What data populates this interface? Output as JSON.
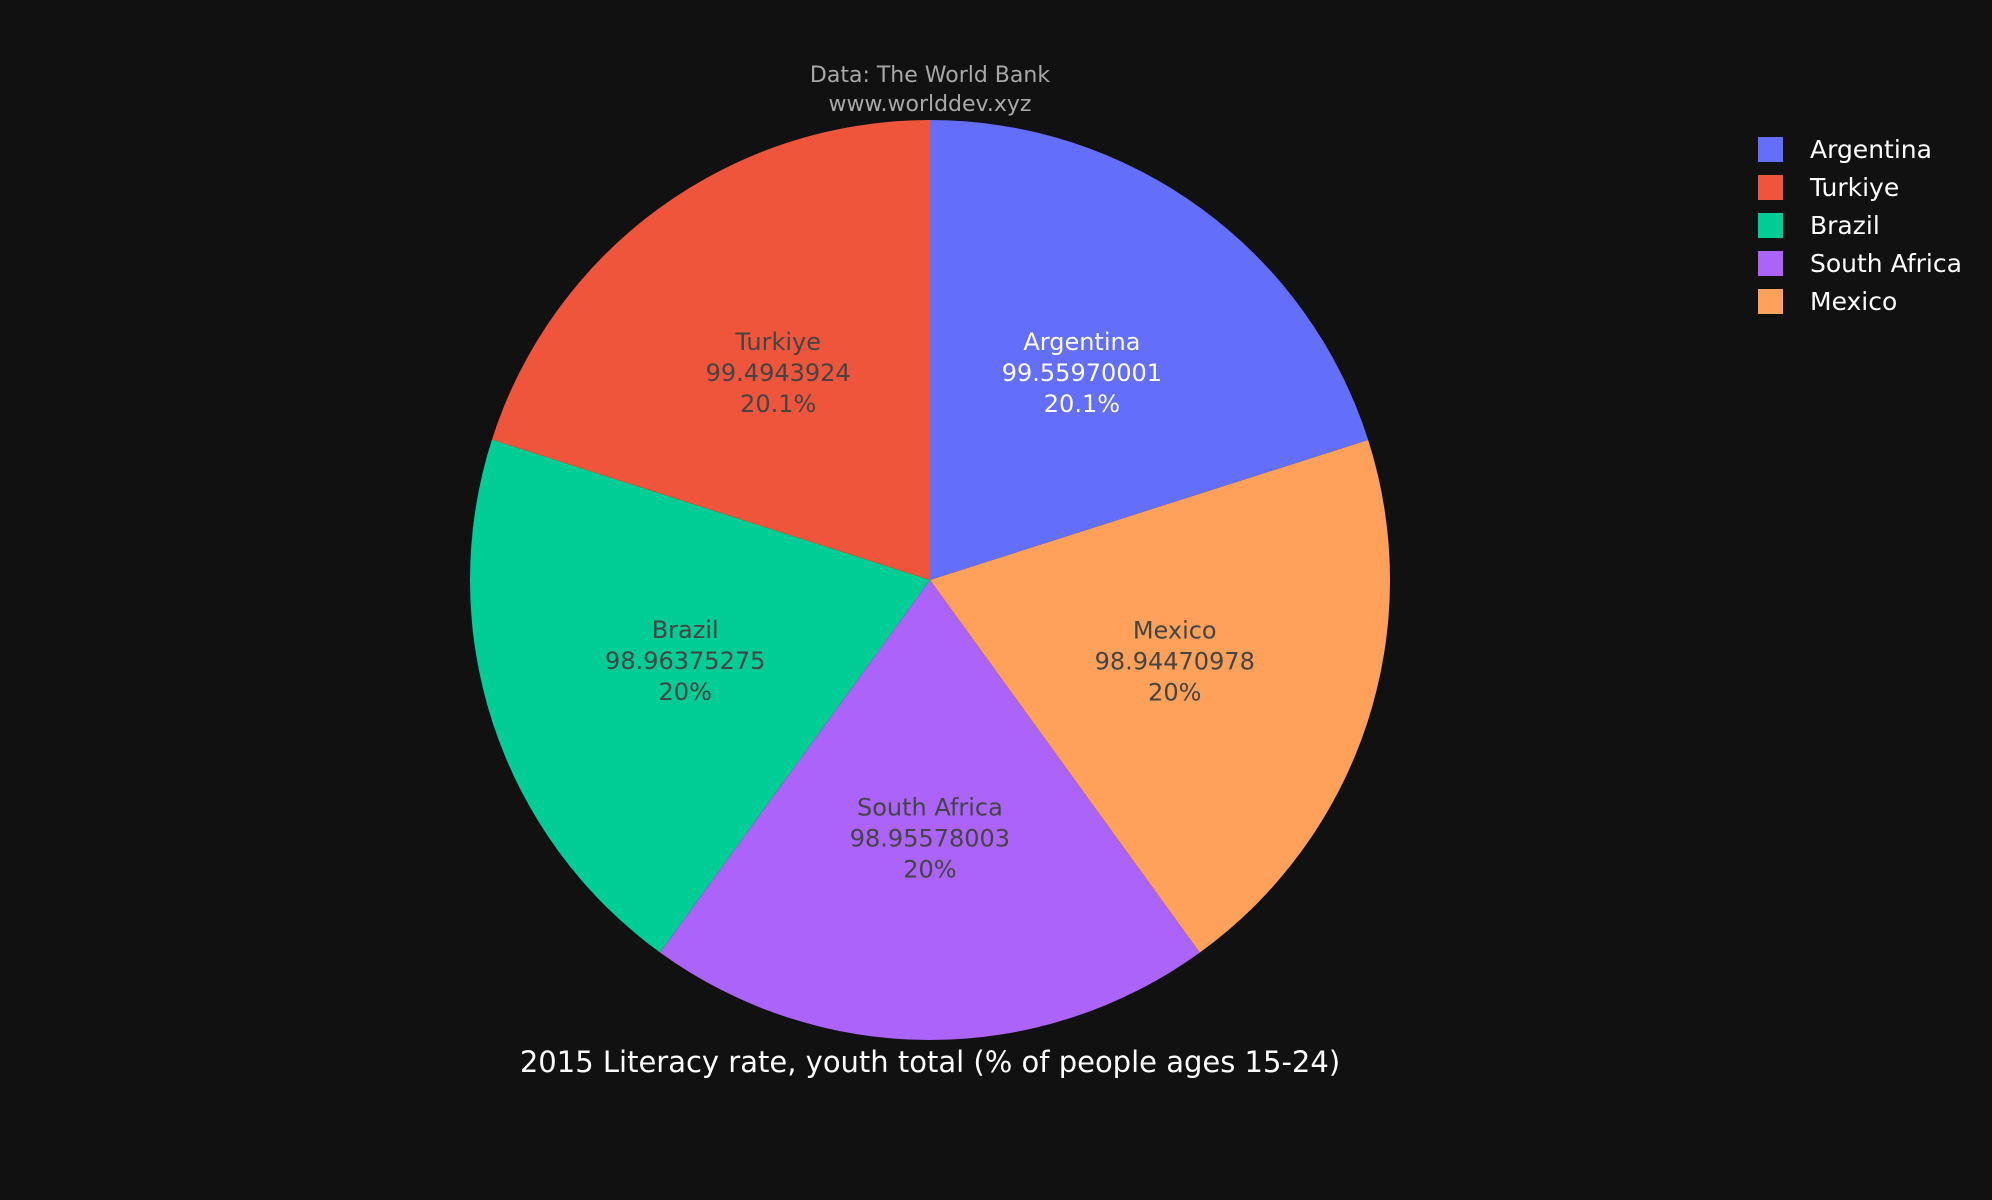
{
  "source": {
    "line1": "Data: The World Bank",
    "line2": "www.worlddev.xyz"
  },
  "chart_data": {
    "type": "pie",
    "title": "2015 Literacy rate, youth total (% of people ages 15-24)",
    "background": "#111111",
    "direction": "clockwise",
    "start_angle": "top",
    "legend_position": "top-right",
    "slices": [
      {
        "label": "Argentina",
        "value": 99.55970001,
        "value_text": "99.55970001",
        "percent_text": "20.1%",
        "color": "#636efa",
        "text_color": "#ffffff"
      },
      {
        "label": "Mexico",
        "value": 98.94470978,
        "value_text": "98.94470978",
        "percent_text": "20%",
        "color": "#ffa15a",
        "text_color": "#444444"
      },
      {
        "label": "South Africa",
        "value": 98.95578003,
        "value_text": "98.95578003",
        "percent_text": "20%",
        "color": "#ab63fa",
        "text_color": "#444444"
      },
      {
        "label": "Brazil",
        "value": 98.96375275,
        "value_text": "98.96375275",
        "percent_text": "20%",
        "color": "#00cc96",
        "text_color": "#444444"
      },
      {
        "label": "Turkiye",
        "value": 99.4943924,
        "value_text": "99.4943924",
        "percent_text": "20.1%",
        "color": "#ef553b",
        "text_color": "#444444"
      }
    ],
    "legend": [
      {
        "label": "Argentina",
        "color": "#636efa"
      },
      {
        "label": "Turkiye",
        "color": "#ef553b"
      },
      {
        "label": "Brazil",
        "color": "#00cc96"
      },
      {
        "label": "South Africa",
        "color": "#ab63fa"
      },
      {
        "label": "Mexico",
        "color": "#ffa15a"
      }
    ]
  }
}
